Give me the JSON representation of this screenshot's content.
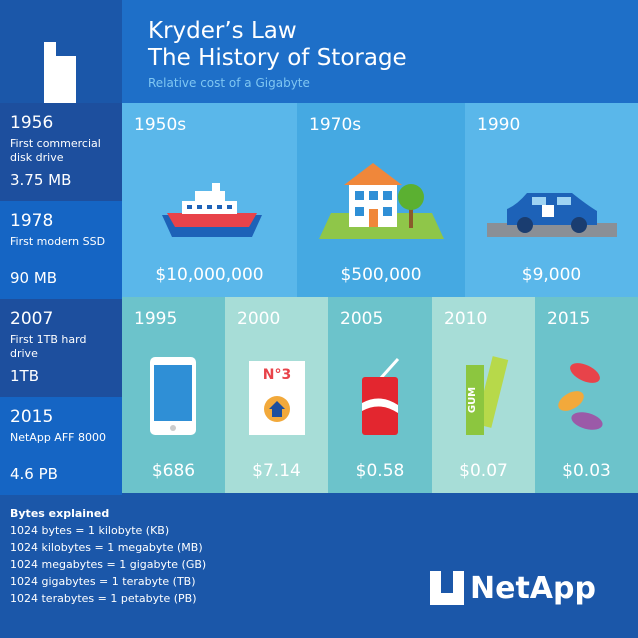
{
  "header": {
    "title_line1": "Kryder’s Law",
    "title_line2": "The History of Storage",
    "subtitle": "Relative cost of a Gigabyte"
  },
  "milestones": [
    {
      "year": "1956",
      "description": "First commercial disk drive",
      "size": "3.75 MB"
    },
    {
      "year": "1978",
      "description": "First modern SSD",
      "size": "90 MB"
    },
    {
      "year": "2007",
      "description": "First 1TB hard drive",
      "size": "1TB"
    },
    {
      "year": "2015",
      "description": "NetApp AFF 8000",
      "size": "4.6 PB"
    }
  ],
  "eras": [
    {
      "label": "1950s",
      "price": "$10,000,000"
    },
    {
      "label": "1970s",
      "price": "$500,000"
    },
    {
      "label": "1990",
      "price": "$9,000"
    },
    {
      "label": "1995",
      "price": "$686"
    },
    {
      "label": "2000",
      "price": "$7.14",
      "icon_text": "N°3"
    },
    {
      "label": "2005",
      "price": "$0.58"
    },
    {
      "label": "2010",
      "price": "$0.07",
      "icon_text": "GUM"
    },
    {
      "label": "2015",
      "price": "$0.03"
    }
  ],
  "bytes": {
    "title": "Bytes explained",
    "lines": [
      "1024 bytes = 1 kilobyte (KB)",
      "1024 kilobytes = 1 megabyte (MB)",
      "1024 megabytes = 1 gigabyte (GB)",
      "1024 gigabytes = 1 terabyte (TB)",
      "1024 terabytes = 1 petabyte (PB)"
    ]
  },
  "logo": "NetApp"
}
